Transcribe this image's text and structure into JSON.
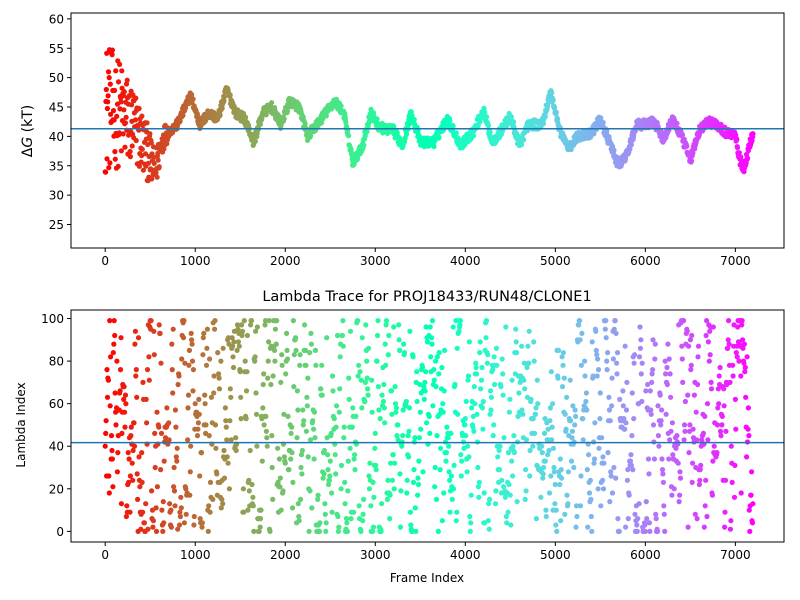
{
  "chart_data": [
    {
      "type": "scatter",
      "title": "",
      "xlabel": "",
      "ylabel": "ΔG (kT)",
      "ylabel_math_part": "G",
      "ylabel_prefix": "Δ",
      "ylabel_suffix": " (kT)",
      "xlim": [
        -380,
        7540
      ],
      "ylim": [
        21,
        61
      ],
      "xticks": [
        0,
        1000,
        2000,
        3000,
        4000,
        5000,
        6000,
        7000
      ],
      "yticks": [
        25,
        30,
        35,
        40,
        45,
        50,
        55,
        60
      ],
      "hline": 41.3,
      "hline_color": "#1f77b4",
      "colormap": "rainbow (reversed: early frames red, late frames violet)",
      "n_frames": 7200,
      "grid": false,
      "series": [
        {
          "trend_points": [
            [
              0,
              45
            ],
            [
              150,
              44
            ],
            [
              300,
              42
            ],
            [
              450,
              38
            ],
            [
              550,
              34
            ],
            [
              650,
              40
            ],
            [
              800,
              42
            ],
            [
              950,
              47
            ],
            [
              1050,
              42
            ],
            [
              1150,
              44
            ],
            [
              1250,
              43
            ],
            [
              1350,
              48
            ],
            [
              1450,
              44
            ],
            [
              1550,
              43
            ],
            [
              1650,
              39
            ],
            [
              1750,
              44
            ],
            [
              1850,
              45
            ],
            [
              1950,
              42
            ],
            [
              2050,
              46
            ],
            [
              2150,
              45
            ],
            [
              2250,
              40
            ],
            [
              2350,
              42
            ],
            [
              2450,
              44
            ],
            [
              2550,
              46
            ],
            [
              2650,
              44
            ],
            [
              2750,
              35.5
            ],
            [
              2850,
              38
            ],
            [
              2950,
              44
            ],
            [
              3050,
              41.5
            ],
            [
              3200,
              41
            ],
            [
              3300,
              38.5
            ],
            [
              3400,
              44
            ],
            [
              3500,
              39
            ],
            [
              3650,
              39
            ],
            [
              3800,
              43
            ],
            [
              3950,
              38.5
            ],
            [
              4100,
              41
            ],
            [
              4200,
              44.5
            ],
            [
              4300,
              39
            ],
            [
              4400,
              41
            ],
            [
              4500,
              43.5
            ],
            [
              4600,
              38.5
            ],
            [
              4700,
              42
            ],
            [
              4850,
              42
            ],
            [
              4950,
              47.5
            ],
            [
              5050,
              41
            ],
            [
              5150,
              38
            ],
            [
              5250,
              40
            ],
            [
              5400,
              40.5
            ],
            [
              5500,
              43
            ],
            [
              5600,
              39
            ],
            [
              5700,
              35
            ],
            [
              5800,
              37
            ],
            [
              5900,
              42
            ],
            [
              6000,
              42
            ],
            [
              6100,
              42.5
            ],
            [
              6200,
              39.5
            ],
            [
              6300,
              43
            ],
            [
              6400,
              40
            ],
            [
              6500,
              36
            ],
            [
              6600,
              41
            ],
            [
              6700,
              42.5
            ],
            [
              6800,
              42
            ],
            [
              6900,
              40.5
            ],
            [
              7000,
              40.5
            ],
            [
              7050,
              36
            ],
            [
              7100,
              34.5
            ],
            [
              7150,
              38
            ],
            [
              7200,
              41
            ]
          ]
        }
      ]
    },
    {
      "type": "scatter",
      "title": "Lambda Trace for PROJ18433/RUN48/CLONE1",
      "xlabel": "Frame Index",
      "ylabel": "Lambda Index",
      "xlim": [
        -380,
        7540
      ],
      "ylim": [
        -5,
        104
      ],
      "xticks": [
        0,
        1000,
        2000,
        3000,
        4000,
        5000,
        6000,
        7000
      ],
      "yticks": [
        0,
        20,
        40,
        60,
        80,
        100
      ],
      "hline": 41.7,
      "hline_color": "#1f77b4",
      "colormap": "rainbow (reversed: early frames red, late frames violet)",
      "n_frames": 7200,
      "lambda_range": [
        0,
        99
      ],
      "grid": false
    }
  ]
}
